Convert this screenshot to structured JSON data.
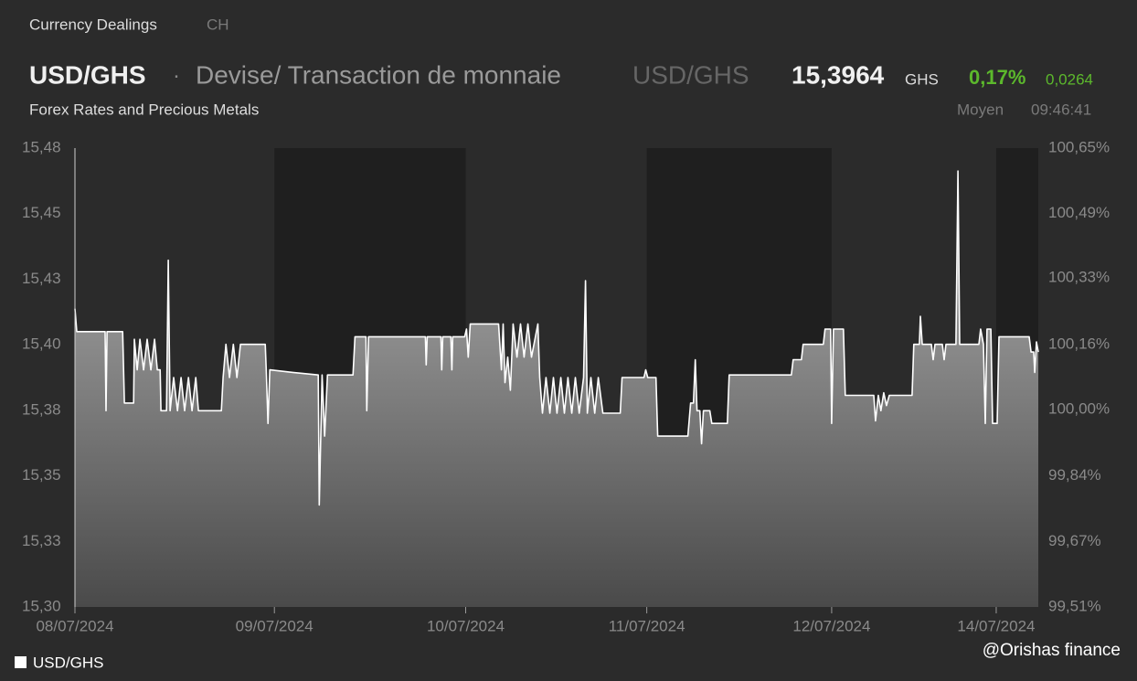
{
  "header": {
    "source": "Currency Dealings",
    "country": "CH",
    "symbol": "USD/GHS",
    "separator": "·",
    "description": "Devise/ Transaction de monnaie",
    "symbol_alt": "USD/GHS",
    "price": "15,3964",
    "currency": "GHS",
    "change_pct": "0,17%",
    "change": "0,0264",
    "subtitle": "Forex Rates and Precious Metals",
    "price_type": "Moyen",
    "time": "09:46:41"
  },
  "watermark": "@Orishas finance",
  "chart_data": {
    "type": "line",
    "x": [
      0.0,
      0.009,
      0.151,
      0.156,
      0.161,
      0.239,
      0.248,
      0.294,
      0.298,
      0.312,
      0.326,
      0.344,
      0.362,
      0.381,
      0.399,
      0.413,
      0.427,
      0.431,
      0.459,
      0.468,
      0.477,
      0.495,
      0.514,
      0.532,
      0.55,
      0.569,
      0.587,
      0.606,
      0.619,
      0.734,
      0.743,
      0.757,
      0.775,
      0.794,
      0.812,
      0.83,
      0.954,
      0.959,
      0.968,
      0.977,
      1.092,
      1.22,
      1.225,
      1.239,
      1.252,
      1.266,
      1.394,
      1.404,
      1.459,
      1.463,
      1.472,
      1.757,
      1.761,
      1.766,
      1.835,
      1.839,
      1.844,
      1.885,
      1.89,
      1.894,
      1.954,
      1.963,
      1.972,
      1.982,
      2.124,
      2.138,
      2.147,
      2.156,
      2.17,
      2.183,
      2.197,
      2.216,
      2.234,
      2.252,
      2.271,
      2.289,
      2.321,
      2.33,
      2.344,
      2.362,
      2.381,
      2.399,
      2.417,
      2.436,
      2.454,
      2.472,
      2.491,
      2.509,
      2.528,
      2.55,
      2.56,
      2.569,
      2.587,
      2.606,
      2.624,
      2.647,
      2.734,
      2.743,
      2.853,
      2.862,
      2.872,
      2.913,
      2.922,
      3.073,
      3.087,
      3.101,
      3.11,
      3.119,
      3.133,
      3.142,
      3.151,
      3.183,
      3.193,
      3.271,
      3.28,
      3.592,
      3.601,
      3.642,
      3.651,
      3.752,
      3.761,
      3.789,
      3.794,
      3.803,
      3.853,
      3.862,
      4.005,
      4.014,
      4.028,
      4.041,
      4.055,
      4.069,
      4.083,
      4.197,
      4.206,
      4.234,
      4.239,
      4.248,
      4.294,
      4.303,
      4.312,
      4.349,
      4.358,
      4.367,
      4.417,
      4.427,
      4.436,
      4.532,
      4.541,
      4.555,
      4.564,
      4.573,
      4.592,
      4.601,
      4.624,
      4.633,
      4.784,
      4.794,
      4.807,
      4.812,
      4.821,
      4.83
    ],
    "series": [
      {
        "name": "USD/GHS",
        "color": "#ffffff",
        "values": [
          15.417,
          15.408,
          15.408,
          15.377,
          15.408,
          15.408,
          15.38,
          15.38,
          15.405,
          15.393,
          15.405,
          15.393,
          15.405,
          15.393,
          15.405,
          15.393,
          15.393,
          15.377,
          15.377,
          15.436,
          15.377,
          15.39,
          15.377,
          15.39,
          15.377,
          15.39,
          15.377,
          15.39,
          15.377,
          15.377,
          15.39,
          15.403,
          15.39,
          15.403,
          15.39,
          15.403,
          15.403,
          15.393,
          15.372,
          15.393,
          15.392,
          15.391,
          15.34,
          15.391,
          15.367,
          15.391,
          15.391,
          15.406,
          15.406,
          15.377,
          15.406,
          15.406,
          15.395,
          15.406,
          15.406,
          15.393,
          15.406,
          15.406,
          15.393,
          15.406,
          15.406,
          15.409,
          15.398,
          15.411,
          15.411,
          15.393,
          15.411,
          15.388,
          15.398,
          15.385,
          15.411,
          15.398,
          15.411,
          15.398,
          15.411,
          15.398,
          15.411,
          15.39,
          15.376,
          15.39,
          15.376,
          15.39,
          15.376,
          15.39,
          15.376,
          15.39,
          15.376,
          15.39,
          15.376,
          15.39,
          15.428,
          15.376,
          15.39,
          15.376,
          15.39,
          15.376,
          15.376,
          15.39,
          15.39,
          15.393,
          15.39,
          15.39,
          15.367,
          15.367,
          15.38,
          15.38,
          15.397,
          15.377,
          15.377,
          15.364,
          15.377,
          15.377,
          15.372,
          15.372,
          15.391,
          15.391,
          15.397,
          15.397,
          15.403,
          15.403,
          15.409,
          15.409,
          15.372,
          15.409,
          15.409,
          15.383,
          15.383,
          15.373,
          15.383,
          15.377,
          15.384,
          15.379,
          15.383,
          15.383,
          15.403,
          15.403,
          15.414,
          15.403,
          15.403,
          15.397,
          15.403,
          15.403,
          15.397,
          15.403,
          15.403,
          15.471,
          15.403,
          15.403,
          15.409,
          15.403,
          15.372,
          15.409,
          15.409,
          15.372,
          15.372,
          15.406,
          15.406,
          15.4,
          15.4,
          15.392,
          15.404,
          15.4
        ]
      }
    ],
    "xlim": [
      0,
      4.83
    ],
    "xticks": [
      {
        "value": 0,
        "label": "08/07/2024"
      },
      {
        "value": 1,
        "label": "09/07/2024"
      },
      {
        "value": 1.959,
        "label": "10/07/2024"
      },
      {
        "value": 2.867,
        "label": "11/07/2024"
      },
      {
        "value": 3.794,
        "label": "12/07/2024"
      },
      {
        "value": 4.619,
        "label": "14/07/2024"
      }
    ],
    "ylim": [
      15.3,
      15.48
    ],
    "yticks": [
      {
        "value": 15.3,
        "label": "15,30"
      },
      {
        "value": 15.3257,
        "label": "15,33"
      },
      {
        "value": 15.3514,
        "label": "15,35"
      },
      {
        "value": 15.3771,
        "label": "15,38"
      },
      {
        "value": 15.4029,
        "label": "15,40"
      },
      {
        "value": 15.4286,
        "label": "15,43"
      },
      {
        "value": 15.4543,
        "label": "15,45"
      },
      {
        "value": 15.48,
        "label": "15,48"
      }
    ],
    "y2lim": [
      99.51,
      100.65
    ],
    "y2ticks": [
      {
        "value": 99.51,
        "label": "99,51%"
      },
      {
        "value": 99.672,
        "label": "99,67%"
      },
      {
        "value": 99.836,
        "label": "99,84%"
      },
      {
        "value": 100.0,
        "label": "100,00%"
      },
      {
        "value": 100.162,
        "label": "100,16%"
      },
      {
        "value": 100.327,
        "label": "100,33%"
      },
      {
        "value": 100.488,
        "label": "100,49%"
      },
      {
        "value": 100.65,
        "label": "100,65%"
      }
    ],
    "legend": "bottom-left"
  }
}
